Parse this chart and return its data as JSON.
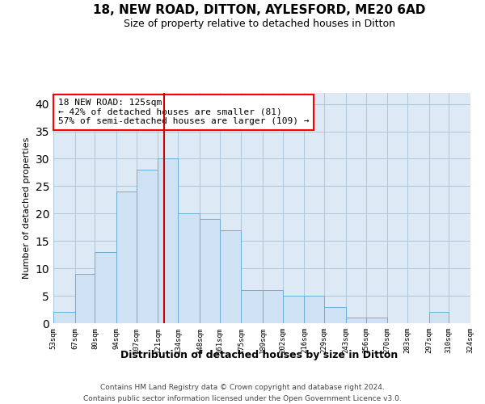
{
  "title_line1": "18, NEW ROAD, DITTON, AYLESFORD, ME20 6AD",
  "title_line2": "Size of property relative to detached houses in Ditton",
  "xlabel": "Distribution of detached houses by size in Ditton",
  "ylabel": "Number of detached properties",
  "footer_line1": "Contains HM Land Registry data © Crown copyright and database right 2024.",
  "footer_line2": "Contains public sector information licensed under the Open Government Licence v3.0.",
  "annotation_line1": "18 NEW ROAD: 125sqm",
  "annotation_line2": "← 42% of detached houses are smaller (81)",
  "annotation_line3": "57% of semi-detached houses are larger (109) →",
  "bar_color": "#cfe2f3",
  "bar_edge_color": "#6aaed6",
  "vline_color": "#cc0000",
  "vline_x": 125,
  "bin_edges": [
    53,
    67,
    80,
    94,
    107,
    121,
    134,
    148,
    161,
    175,
    189,
    202,
    216,
    229,
    243,
    256,
    270,
    283,
    297,
    310,
    324
  ],
  "bin_labels": [
    "53sqm",
    "67sqm",
    "80sqm",
    "94sqm",
    "107sqm",
    "121sqm",
    "134sqm",
    "148sqm",
    "161sqm",
    "175sqm",
    "189sqm",
    "202sqm",
    "216sqm",
    "229sqm",
    "243sqm",
    "256sqm",
    "270sqm",
    "283sqm",
    "297sqm",
    "310sqm",
    "324sqm"
  ],
  "bar_heights": [
    2,
    9,
    13,
    24,
    28,
    30,
    20,
    19,
    17,
    6,
    6,
    5,
    5,
    3,
    1,
    1,
    0,
    0,
    2,
    0
  ],
  "ylim_max": 42,
  "yticks": [
    0,
    5,
    10,
    15,
    20,
    25,
    30,
    35,
    40
  ],
  "grid_color": "#aec6d8",
  "bg_color": "#ddeaf5"
}
